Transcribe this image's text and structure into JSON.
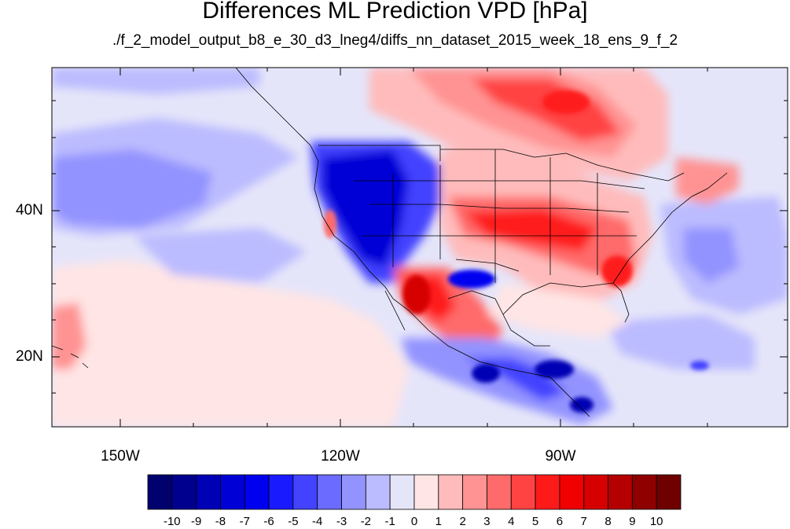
{
  "title": "Differences ML Prediction VPD [hPa]",
  "subtitle": "./f_2_model_output_b8_e_30_d3_lneg4/diffs_nn_dataset_2015_week_18_ens_9_f_2",
  "lat_labels": [
    "40N",
    "20N"
  ],
  "lon_labels": [
    "150W",
    "120W",
    "90W"
  ],
  "colorbar": {
    "labels": [
      "-10",
      "-9",
      "-8",
      "-7",
      "-6",
      "-5",
      "-4",
      "-3",
      "-2",
      "-1",
      "0",
      "1",
      "2",
      "3",
      "4",
      "5",
      "6",
      "7",
      "8",
      "9",
      "10"
    ],
    "colors": [
      "#00006e",
      "#00008f",
      "#0000b4",
      "#0000d6",
      "#0000f0",
      "#1a1aff",
      "#4343ff",
      "#6b6bff",
      "#9393ff",
      "#bbbbff",
      "#e5e5fa",
      "#ffe5e5",
      "#ffbbbb",
      "#ff9393",
      "#ff6b6b",
      "#ff4343",
      "#ff1a1a",
      "#f00000",
      "#d60000",
      "#b40000",
      "#8f0000",
      "#6e0000"
    ]
  },
  "chart_data": {
    "type": "heatmap",
    "title": "Differences ML Prediction VPD [hPa]",
    "subtitle": "./f_2_model_output_b8_e_30_d3_lneg4/diffs_nn_dataset_2015_week_18_ens_9_f_2",
    "lon_range": [
      -160,
      -60
    ],
    "lat_range": [
      11,
      59
    ],
    "lon_ticks": [
      -150,
      -120,
      -90
    ],
    "lat_ticks": [
      40,
      20
    ],
    "value_range": [
      -10,
      10
    ],
    "levels": [
      -10,
      -9,
      -8,
      -7,
      -6,
      -5,
      -4,
      -3,
      -2,
      -1,
      0,
      1,
      2,
      3,
      4,
      5,
      6,
      7,
      8,
      9,
      10
    ]
  }
}
